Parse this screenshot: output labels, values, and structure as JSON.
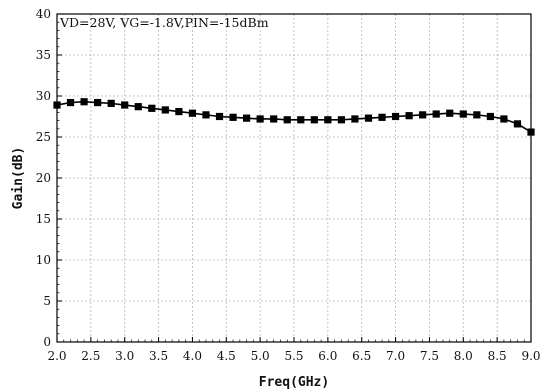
{
  "chart_data": {
    "type": "line",
    "title": "",
    "annotation": "VD=28V, VG=-1.8V,PIN=-15dBm",
    "xlabel": "Freq(GHz)",
    "ylabel": "Gain(dB)",
    "xlim": [
      2.0,
      9.0
    ],
    "ylim": [
      0,
      40
    ],
    "xticks": [
      "2.0",
      "2.5",
      "3.0",
      "3.5",
      "4.0",
      "4.5",
      "5.0",
      "5.5",
      "6.0",
      "6.5",
      "7.0",
      "7.5",
      "8.0",
      "8.5",
      "9.0"
    ],
    "yticks": [
      "0",
      "5",
      "10",
      "15",
      "20",
      "25",
      "30",
      "35",
      "40"
    ],
    "grid": true,
    "marker": "square",
    "line_color": "#000000",
    "series": [
      {
        "x": [
          2.0,
          2.2,
          2.4,
          2.6,
          2.8,
          3.0,
          3.2,
          3.4,
          3.6,
          3.8,
          4.0,
          4.2,
          4.4,
          4.6,
          4.8,
          5.0,
          5.2,
          5.4,
          5.6,
          5.8,
          6.0,
          6.2,
          6.4,
          6.6,
          6.8,
          7.0,
          7.2,
          7.4,
          7.6,
          7.8,
          8.0,
          8.2,
          8.4,
          8.6,
          8.8,
          9.0
        ],
        "values": [
          28.9,
          29.2,
          29.3,
          29.2,
          29.1,
          28.9,
          28.7,
          28.5,
          28.3,
          28.1,
          27.9,
          27.7,
          27.5,
          27.4,
          27.3,
          27.2,
          27.2,
          27.1,
          27.1,
          27.1,
          27.1,
          27.1,
          27.2,
          27.3,
          27.4,
          27.5,
          27.6,
          27.7,
          27.8,
          27.9,
          27.8,
          27.7,
          27.5,
          27.2,
          26.6,
          25.6
        ]
      }
    ]
  }
}
